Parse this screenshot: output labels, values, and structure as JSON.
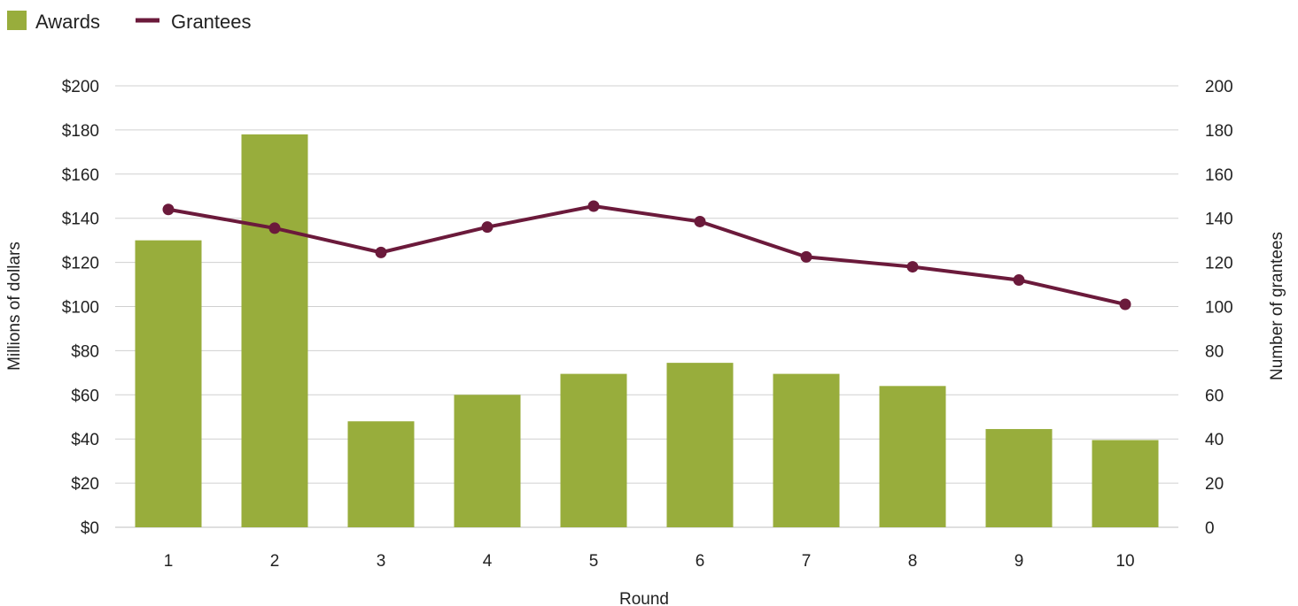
{
  "chart_data": {
    "type": "bar",
    "combo": "bar+line",
    "categories": [
      "1",
      "2",
      "3",
      "4",
      "5",
      "6",
      "7",
      "8",
      "9",
      "10"
    ],
    "series": [
      {
        "name": "Awards",
        "type": "bar",
        "axis": "left",
        "color": "#98ad3c",
        "values": [
          130,
          178,
          48,
          60,
          69.5,
          74.5,
          69.5,
          64,
          44.5,
          39.5
        ]
      },
      {
        "name": "Grantees",
        "type": "line",
        "axis": "right",
        "color": "#6b1a3b",
        "values": [
          144,
          135.5,
          124.5,
          136,
          145.5,
          138.5,
          122.5,
          118,
          112,
          101
        ]
      }
    ],
    "xlabel": "Round",
    "ylabel": "Millions of dollars",
    "y2label": "Number of grantees",
    "ylim": [
      0,
      200
    ],
    "y2lim": [
      0,
      200
    ],
    "yticks": [
      "$0",
      "$20",
      "$40",
      "$60",
      "$80",
      "$100",
      "$120",
      "$140",
      "$160",
      "$180",
      "$200"
    ],
    "y2ticks": [
      "0",
      "20",
      "40",
      "60",
      "80",
      "100",
      "120",
      "140",
      "160",
      "180",
      "200"
    ],
    "grid": true,
    "legend": "top-left"
  }
}
